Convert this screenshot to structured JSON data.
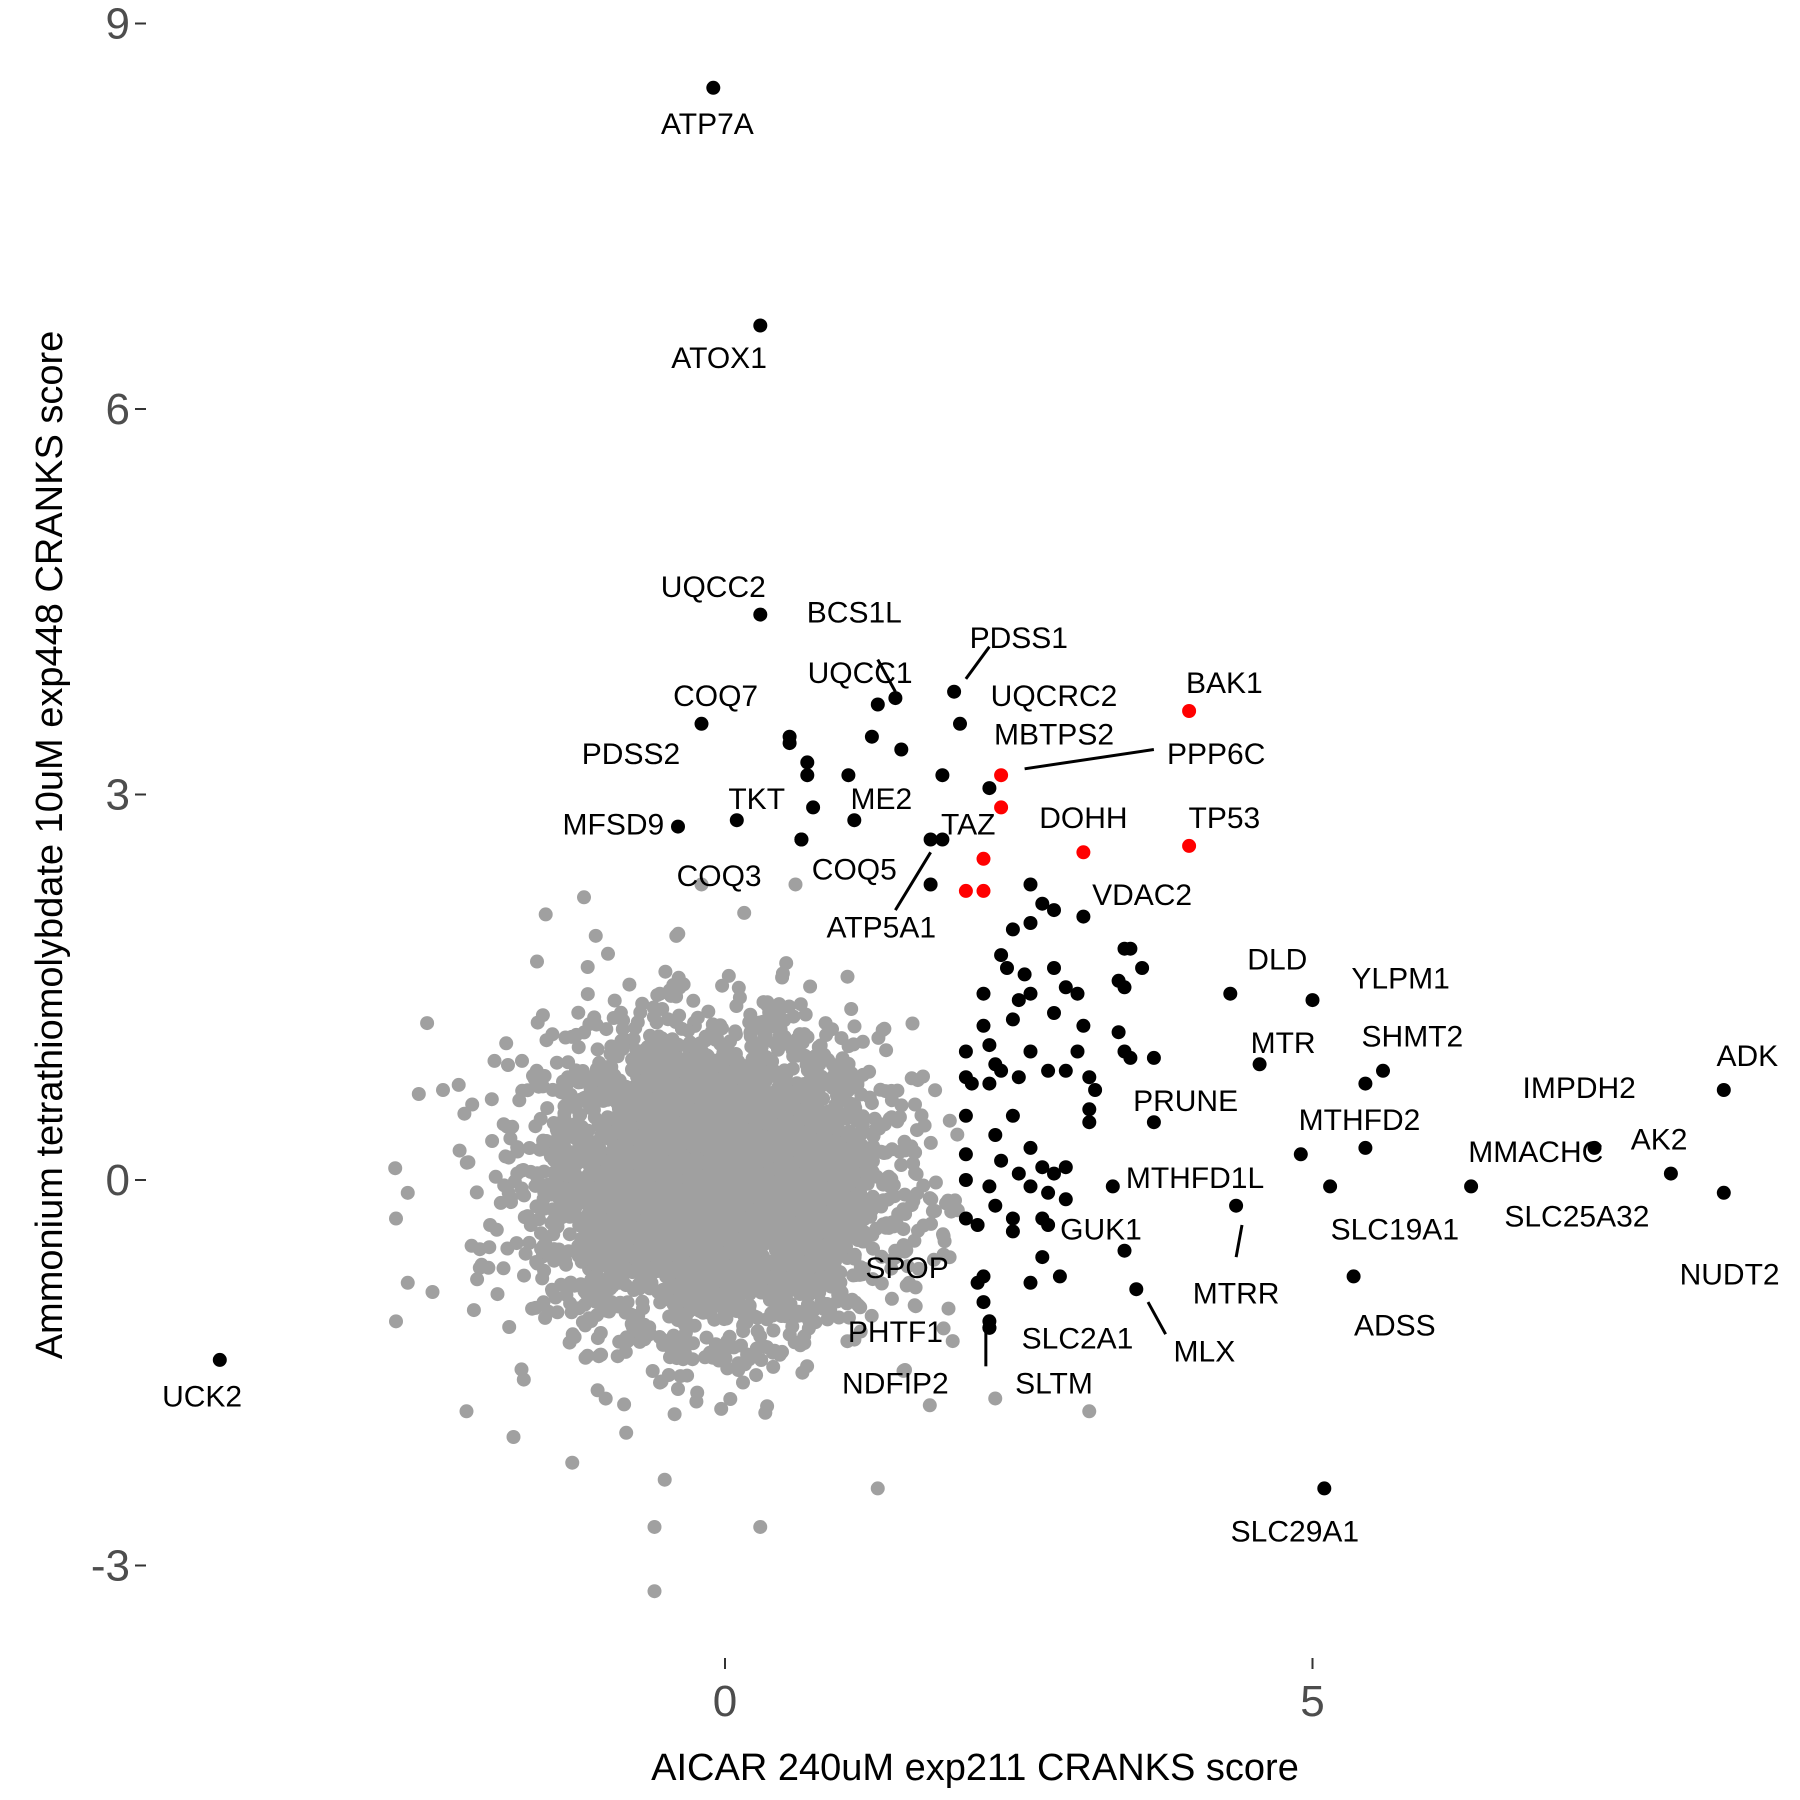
{
  "chart_data": {
    "type": "scatter",
    "title": "",
    "xlabel": "AICAR 240uM exp211 CRANKS score",
    "ylabel": "Ammonium tetrathiomolybdate 10uM exp448 CRANKS score",
    "xlim": [
      -4.9,
      8.8
    ],
    "ylim": [
      -3.9,
      9.2
    ],
    "x_ticks": [
      0,
      5
    ],
    "x_tick_labels": [
      "0",
      "5"
    ],
    "y_ticks": [
      -3,
      0,
      3,
      6,
      9
    ],
    "y_tick_labels": [
      "-3",
      "0",
      "3",
      "6",
      "9"
    ],
    "grid": false,
    "legend": "none",
    "colors": {
      "background_points": "#a0a0a0",
      "hits": "#000000",
      "highlight": "#ff0000"
    },
    "background_cloud": {
      "description_count": 1,
      "center": [
        -0.1,
        0.0
      ],
      "outliers": [
        [
          -2.4,
          0.7
        ],
        [
          -2.7,
          -0.1
        ],
        [
          -2.8,
          -0.3
        ],
        [
          -2.7,
          -0.8
        ],
        [
          -2.8,
          -1.1
        ],
        [
          -2.2,
          -1.8
        ],
        [
          -1.6,
          1.7
        ],
        [
          -1.1,
          1.9
        ],
        [
          -1.8,
          -2.0
        ],
        [
          -1.3,
          -2.2
        ],
        [
          -0.6,
          -2.7
        ],
        [
          -0.6,
          -3.2
        ],
        [
          0.3,
          -2.7
        ],
        [
          1.3,
          -2.4
        ],
        [
          3.1,
          -1.8
        ],
        [
          2.3,
          -1.7
        ],
        [
          -1.2,
          2.2
        ],
        [
          -0.2,
          2.3
        ],
        [
          0.6,
          2.3
        ]
      ]
    },
    "series": [
      {
        "name": "labeled",
        "color": "#000000",
        "points": [
          {
            "x": -0.1,
            "y": 8.5,
            "label": "ATP7A"
          },
          {
            "x": 0.3,
            "y": 6.65,
            "label": "ATOX1"
          },
          {
            "x": 0.3,
            "y": 4.4,
            "label": "UQCC2"
          },
          {
            "x": 1.45,
            "y": 3.75,
            "label": "BCS1L"
          },
          {
            "x": 1.3,
            "y": 3.7,
            "label": "UQCC1"
          },
          {
            "x": 1.95,
            "y": 3.8,
            "label": "PDSS1"
          },
          {
            "x": 2.0,
            "y": 3.55,
            "label": "UQCRC2"
          },
          {
            "x": -0.2,
            "y": 3.55,
            "label": "COQ7"
          },
          {
            "x": 0.55,
            "y": 3.45,
            "label": "PDSS2"
          },
          {
            "x": 0.1,
            "y": 2.8,
            "label": "TKT"
          },
          {
            "x": -0.4,
            "y": 2.75,
            "label": "MFSD9"
          },
          {
            "x": 1.1,
            "y": 2.8,
            "label": "ME2"
          },
          {
            "x": 1.85,
            "y": 2.65,
            "label": "TAZ"
          },
          {
            "x": 0.65,
            "y": 2.65,
            "label": "COQ3"
          },
          {
            "x": 1.75,
            "y": 2.65,
            "label": "ATP5A1"
          },
          {
            "x": 4.3,
            "y": 1.45,
            "label": "DLD"
          },
          {
            "x": 5.0,
            "y": 1.4,
            "label": "YLPM1"
          },
          {
            "x": 4.55,
            "y": 0.9,
            "label": "MTR"
          },
          {
            "x": 5.6,
            "y": 0.85,
            "label": "SHMT2"
          },
          {
            "x": 5.45,
            "y": 0.75,
            "label": "IMPDH2"
          },
          {
            "x": 8.5,
            "y": 0.7,
            "label": "ADK"
          },
          {
            "x": 3.65,
            "y": 0.45,
            "label": "PRUNE"
          },
          {
            "x": 5.45,
            "y": 0.25,
            "label": "MTHFD2"
          },
          {
            "x": 7.4,
            "y": 0.25,
            "label": "MMACHC"
          },
          {
            "x": 8.05,
            "y": 0.05,
            "label": "AK2"
          },
          {
            "x": 4.9,
            "y": 0.2,
            "label": "MTHFD1L"
          },
          {
            "x": 5.15,
            "y": -0.05,
            "label": "SLC19A1"
          },
          {
            "x": 6.35,
            "y": -0.05,
            "label": "SLC25A32"
          },
          {
            "x": 8.5,
            "y": -0.1,
            "label": "NUDT2"
          },
          {
            "x": 3.4,
            "y": -0.55,
            "label": "GUK1"
          },
          {
            "x": 4.35,
            "y": -0.2,
            "label": "MTRR"
          },
          {
            "x": 5.35,
            "y": -0.75,
            "label": "ADSS"
          },
          {
            "x": 3.5,
            "y": -0.85,
            "label": "MLX"
          },
          {
            "x": 2.2,
            "y": -0.75,
            "label": "SPOP"
          },
          {
            "x": 2.2,
            "y": -0.95,
            "label": "PHTF1"
          },
          {
            "x": 2.25,
            "y": -1.1,
            "label": "SLC2A1"
          },
          {
            "x": 2.25,
            "y": -1.15,
            "label": "NDFIP2"
          },
          {
            "x": 2.25,
            "y": -1.15,
            "label": "SLTM"
          },
          {
            "x": -4.3,
            "y": -1.4,
            "label": "UCK2"
          },
          {
            "x": 5.1,
            "y": -2.4,
            "label": "SLC29A1"
          }
        ]
      },
      {
        "name": "highlighted",
        "color": "#ff0000",
        "points": [
          {
            "x": 3.95,
            "y": 3.65,
            "label": "BAK1"
          },
          {
            "x": 2.35,
            "y": 3.15,
            "label": "PPP6C"
          },
          {
            "x": 2.35,
            "y": 2.9,
            "label": "MBTPS2"
          },
          {
            "x": 3.05,
            "y": 2.55,
            "label": "DOHH"
          },
          {
            "x": 3.95,
            "y": 2.6,
            "label": "TP53"
          },
          {
            "x": 2.2,
            "y": 2.5,
            "label": "VDAC2"
          },
          {
            "x": 2.05,
            "y": 2.25,
            "label": ""
          },
          {
            "x": 2.2,
            "y": 2.25,
            "label": ""
          }
        ]
      },
      {
        "name": "unlabeled-hits",
        "color": "#000000",
        "points": [
          {
            "x": 0.55,
            "y": 3.4
          },
          {
            "x": 0.7,
            "y": 3.25
          },
          {
            "x": 0.7,
            "y": 3.15
          },
          {
            "x": 1.05,
            "y": 3.15
          },
          {
            "x": 1.5,
            "y": 3.35
          },
          {
            "x": 1.85,
            "y": 3.15
          },
          {
            "x": 2.25,
            "y": 3.05
          },
          {
            "x": 0.75,
            "y": 2.9
          },
          {
            "x": 0.65,
            "y": 2.65
          },
          {
            "x": 1.25,
            "y": 3.45
          },
          {
            "x": 1.75,
            "y": 2.3
          },
          {
            "x": 2.6,
            "y": 2.3
          },
          {
            "x": 2.7,
            "y": 2.15
          },
          {
            "x": 2.8,
            "y": 2.1
          },
          {
            "x": 2.45,
            "y": 1.95
          },
          {
            "x": 2.6,
            "y": 2.0
          },
          {
            "x": 3.05,
            "y": 2.05
          },
          {
            "x": 3.4,
            "y": 1.8
          },
          {
            "x": 3.45,
            "y": 1.8
          },
          {
            "x": 3.55,
            "y": 1.65
          },
          {
            "x": 2.35,
            "y": 1.75
          },
          {
            "x": 2.4,
            "y": 1.65
          },
          {
            "x": 2.55,
            "y": 1.6
          },
          {
            "x": 2.8,
            "y": 1.65
          },
          {
            "x": 3.35,
            "y": 1.55
          },
          {
            "x": 2.2,
            "y": 1.45
          },
          {
            "x": 2.5,
            "y": 1.4
          },
          {
            "x": 2.6,
            "y": 1.45
          },
          {
            "x": 2.9,
            "y": 1.5
          },
          {
            "x": 3.0,
            "y": 1.45
          },
          {
            "x": 3.4,
            "y": 1.5
          },
          {
            "x": 2.45,
            "y": 1.25
          },
          {
            "x": 2.8,
            "y": 1.3
          },
          {
            "x": 3.05,
            "y": 1.2
          },
          {
            "x": 2.2,
            "y": 1.2
          },
          {
            "x": 2.25,
            "y": 1.05
          },
          {
            "x": 3.35,
            "y": 1.15
          },
          {
            "x": 3.0,
            "y": 1.0
          },
          {
            "x": 3.4,
            "y": 1.0
          },
          {
            "x": 2.05,
            "y": 1.0
          },
          {
            "x": 2.6,
            "y": 1.0
          },
          {
            "x": 3.45,
            "y": 0.95
          },
          {
            "x": 3.65,
            "y": 0.95
          },
          {
            "x": 2.3,
            "y": 0.9
          },
          {
            "x": 2.35,
            "y": 0.85
          },
          {
            "x": 2.5,
            "y": 0.8
          },
          {
            "x": 2.75,
            "y": 0.85
          },
          {
            "x": 2.9,
            "y": 0.85
          },
          {
            "x": 3.1,
            "y": 0.8
          },
          {
            "x": 2.05,
            "y": 0.8
          },
          {
            "x": 2.25,
            "y": 0.75
          },
          {
            "x": 2.1,
            "y": 0.75
          },
          {
            "x": 3.15,
            "y": 0.7
          },
          {
            "x": 3.1,
            "y": 0.55
          },
          {
            "x": 3.1,
            "y": 0.45
          },
          {
            "x": 2.45,
            "y": 0.5
          },
          {
            "x": 2.05,
            "y": 0.5
          },
          {
            "x": 2.3,
            "y": 0.35
          },
          {
            "x": 2.6,
            "y": 0.25
          },
          {
            "x": 2.05,
            "y": 0.2
          },
          {
            "x": 2.35,
            "y": 0.15
          },
          {
            "x": 2.7,
            "y": 0.1
          },
          {
            "x": 2.8,
            "y": 0.05
          },
          {
            "x": 2.9,
            "y": 0.1
          },
          {
            "x": 2.05,
            "y": 0.0
          },
          {
            "x": 2.5,
            "y": 0.05
          },
          {
            "x": 2.25,
            "y": -0.05
          },
          {
            "x": 2.6,
            "y": -0.05
          },
          {
            "x": 2.75,
            "y": -0.1
          },
          {
            "x": 2.9,
            "y": -0.15
          },
          {
            "x": 2.3,
            "y": -0.2
          },
          {
            "x": 2.05,
            "y": -0.3
          },
          {
            "x": 2.45,
            "y": -0.3
          },
          {
            "x": 2.7,
            "y": -0.3
          },
          {
            "x": 2.15,
            "y": -0.35
          },
          {
            "x": 2.45,
            "y": -0.4
          },
          {
            "x": 2.7,
            "y": -0.6
          },
          {
            "x": 2.85,
            "y": -0.75
          },
          {
            "x": 2.6,
            "y": -0.8
          },
          {
            "x": 2.15,
            "y": -0.8
          },
          {
            "x": 2.75,
            "y": -0.35
          },
          {
            "x": 3.3,
            "y": -0.05
          }
        ]
      }
    ],
    "annotations": [
      {
        "label": "BCS1L",
        "from": [
          1.3,
          4.05
        ],
        "to": [
          1.45,
          3.8
        ]
      },
      {
        "label": "PDSS1",
        "from": [
          2.25,
          4.15
        ],
        "to": [
          2.05,
          3.9
        ]
      },
      {
        "label": "PPP6C",
        "from": [
          3.65,
          3.35
        ],
        "to": [
          2.55,
          3.2
        ]
      },
      {
        "label": "ATP5A1",
        "from": [
          1.45,
          2.1
        ],
        "to": [
          1.75,
          2.55
        ]
      },
      {
        "label": "MTRR",
        "from": [
          4.35,
          -0.6
        ],
        "to": [
          4.4,
          -0.35
        ]
      },
      {
        "label": "MLX",
        "from": [
          3.75,
          -1.2
        ],
        "to": [
          3.6,
          -0.95
        ]
      },
      {
        "label": "NDFIP2",
        "from": [
          2.22,
          -1.45
        ],
        "to": [
          2.22,
          -1.15
        ]
      }
    ],
    "labels_drawn": [
      {
        "text": "ATP7A",
        "x": -0.15,
        "y": 8.2
      },
      {
        "text": "ATOX1",
        "x": -0.05,
        "y": 6.38
      },
      {
        "text": "UQCC2",
        "x": -0.1,
        "y": 4.6
      },
      {
        "text": "BCS1L",
        "x": 1.1,
        "y": 4.4
      },
      {
        "text": "UQCC1",
        "x": 1.15,
        "y": 3.93
      },
      {
        "text": "PDSS1",
        "x": 2.5,
        "y": 4.2
      },
      {
        "text": "UQCRC2",
        "x": 2.8,
        "y": 3.75
      },
      {
        "text": "COQ7",
        "x": -0.08,
        "y": 3.75
      },
      {
        "text": "BAK1",
        "x": 4.25,
        "y": 3.85
      },
      {
        "text": "PDSS2",
        "x": -0.8,
        "y": 3.3
      },
      {
        "text": "MBTPS2",
        "x": 2.8,
        "y": 3.45
      },
      {
        "text": "PPP6C",
        "x": 4.18,
        "y": 3.3
      },
      {
        "text": "TKT",
        "x": 0.27,
        "y": 2.95
      },
      {
        "text": "ME2",
        "x": 1.33,
        "y": 2.95
      },
      {
        "text": "MFSD9",
        "x": -0.95,
        "y": 2.75
      },
      {
        "text": "DOHH",
        "x": 3.05,
        "y": 2.8
      },
      {
        "text": "TAZ",
        "x": 2.07,
        "y": 2.75
      },
      {
        "text": "TP53",
        "x": 4.25,
        "y": 2.8
      },
      {
        "text": "COQ3",
        "x": -0.05,
        "y": 2.35
      },
      {
        "text": "COQ5",
        "x": 1.1,
        "y": 2.4
      },
      {
        "text": "VDAC2",
        "x": 3.55,
        "y": 2.2
      },
      {
        "text": "ATP5A1",
        "x": 1.33,
        "y": 1.95
      },
      {
        "text": "DLD",
        "x": 4.7,
        "y": 1.7
      },
      {
        "text": "YLPM1",
        "x": 5.75,
        "y": 1.55
      },
      {
        "text": "SHMT2",
        "x": 5.85,
        "y": 1.1
      },
      {
        "text": "MTR",
        "x": 4.75,
        "y": 1.05
      },
      {
        "text": "ADK",
        "x": 8.7,
        "y": 0.95
      },
      {
        "text": "IMPDH2",
        "x": 7.27,
        "y": 0.7
      },
      {
        "text": "PRUNE",
        "x": 3.92,
        "y": 0.6
      },
      {
        "text": "MTHFD2",
        "x": 5.4,
        "y": 0.45
      },
      {
        "text": "MMACHC",
        "x": 6.9,
        "y": 0.2
      },
      {
        "text": "AK2",
        "x": 7.95,
        "y": 0.3
      },
      {
        "text": "MTHFD1L",
        "x": 4.0,
        "y": 0.0
      },
      {
        "text": "SLC25A32",
        "x": 7.25,
        "y": -0.3
      },
      {
        "text": "SLC19A1",
        "x": 5.7,
        "y": -0.4
      },
      {
        "text": "GUK1",
        "x": 3.2,
        "y": -0.4
      },
      {
        "text": "NUDT2",
        "x": 8.55,
        "y": -0.75
      },
      {
        "text": "SPOP",
        "x": 1.55,
        "y": -0.7
      },
      {
        "text": "MTRR",
        "x": 4.35,
        "y": -0.9
      },
      {
        "text": "ADSS",
        "x": 5.7,
        "y": -1.15
      },
      {
        "text": "PHTF1",
        "x": 1.45,
        "y": -1.2
      },
      {
        "text": "SLC2A1",
        "x": 3.0,
        "y": -1.25
      },
      {
        "text": "MLX",
        "x": 4.08,
        "y": -1.35
      },
      {
        "text": "NDFIP2",
        "x": 1.45,
        "y": -1.6
      },
      {
        "text": "SLTM",
        "x": 2.8,
        "y": -1.6
      },
      {
        "text": "UCK2",
        "x": -4.45,
        "y": -1.7
      },
      {
        "text": "SLC29A1",
        "x": 4.85,
        "y": -2.75
      }
    ]
  }
}
